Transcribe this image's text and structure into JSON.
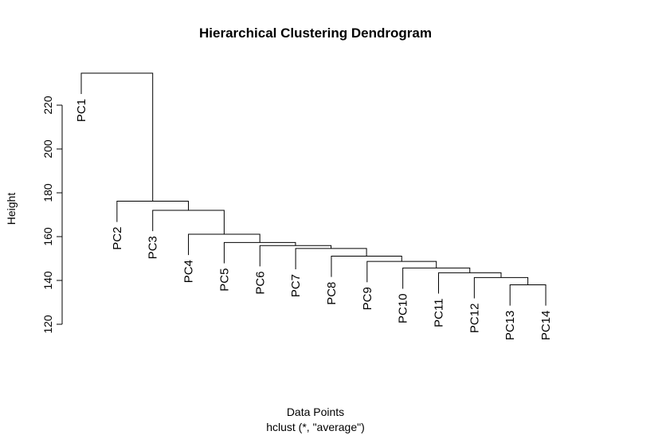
{
  "chart_data": {
    "type": "dendrogram",
    "title": "Hierarchical Clustering Dendrogram",
    "xlabel": "Data Points",
    "sub": "hclust (*, \"average\")",
    "ylabel": "Height",
    "ylim": [
      120,
      234
    ],
    "yticks": [
      120,
      140,
      160,
      180,
      200,
      220
    ],
    "leaves": [
      "PC1",
      "PC2",
      "PC3",
      "PC4",
      "PC5",
      "PC6",
      "PC7",
      "PC8",
      "PC9",
      "PC10",
      "PC11",
      "PC12",
      "PC13",
      "PC14"
    ],
    "merges": [
      {
        "left": "PC13",
        "right": "PC14",
        "height": 138.0
      },
      {
        "left": "PC12",
        "right": 1,
        "height": 141.3
      },
      {
        "left": "PC11",
        "right": 2,
        "height": 143.5
      },
      {
        "left": "PC10",
        "right": 3,
        "height": 145.7
      },
      {
        "left": "PC9",
        "right": 4,
        "height": 148.7
      },
      {
        "left": "PC8",
        "right": 5,
        "height": 151.1
      },
      {
        "left": "PC7",
        "right": 6,
        "height": 154.6
      },
      {
        "left": "PC6",
        "right": 7,
        "height": 155.9
      },
      {
        "left": "PC5",
        "right": 8,
        "height": 157.3
      },
      {
        "left": "PC4",
        "right": 9,
        "height": 161.1
      },
      {
        "left": "PC3",
        "right": 10,
        "height": 172.0
      },
      {
        "left": "PC2",
        "right": 11,
        "height": 176.2
      },
      {
        "left": "PC1",
        "right": 12,
        "height": 234.6
      }
    ]
  }
}
